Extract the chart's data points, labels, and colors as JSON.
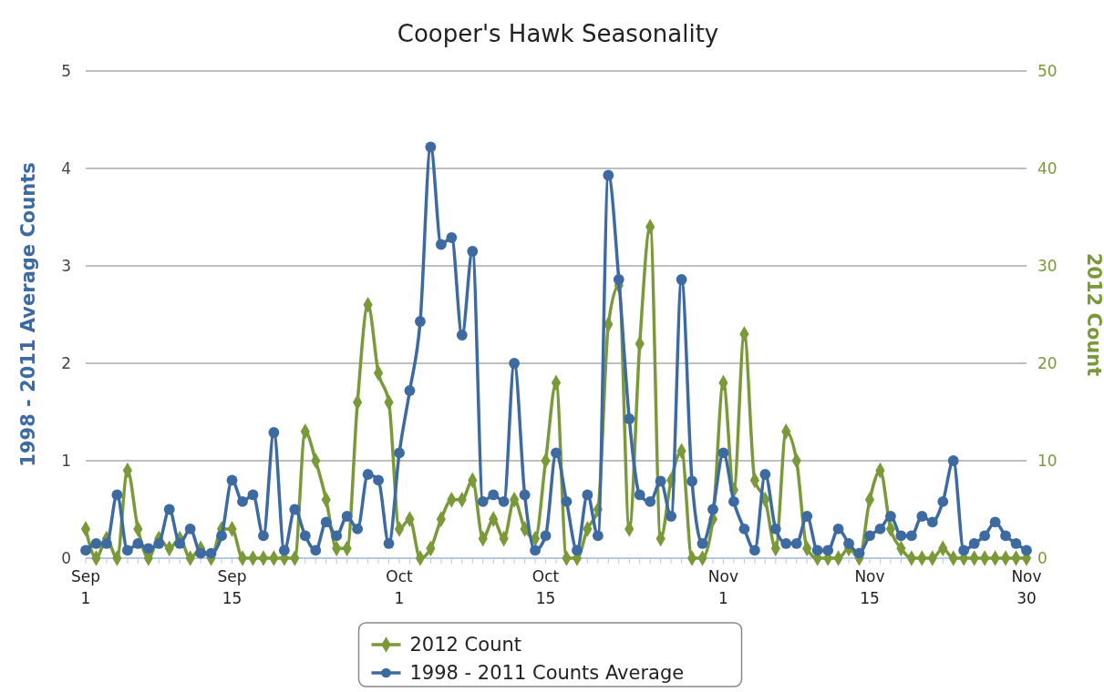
{
  "chart_data": {
    "type": "line",
    "title": "Cooper's Hawk Seasonality",
    "ylabel": "1998 - 2011 Average Counts",
    "y2label": "2012 Count",
    "x": [
      "--09-01",
      "--09-02",
      "--09-03",
      "--09-04",
      "--09-05",
      "--09-06",
      "--09-07",
      "--09-08",
      "--09-09",
      "--09-10",
      "--09-11",
      "--09-12",
      "--09-13",
      "--09-14",
      "--09-15",
      "--09-16",
      "--09-17",
      "--09-18",
      "--09-19",
      "--09-20",
      "--09-21",
      "--09-22",
      "--09-23",
      "--09-24",
      "--09-25",
      "--09-26",
      "--09-27",
      "--09-28",
      "--09-29",
      "--09-30",
      "--10-01",
      "--10-02",
      "--10-03",
      "--10-04",
      "--10-05",
      "--10-06",
      "--10-07",
      "--10-08",
      "--10-09",
      "--10-10",
      "--10-11",
      "--10-12",
      "--10-13",
      "--10-14",
      "--10-15",
      "--10-16",
      "--10-17",
      "--10-18",
      "--10-19",
      "--10-20",
      "--10-21",
      "--10-22",
      "--10-23",
      "--10-24",
      "--10-25",
      "--10-26",
      "--10-27",
      "--10-28",
      "--10-29",
      "--10-30",
      "--10-31",
      "--11-01",
      "--11-02",
      "--11-03",
      "--11-04",
      "--11-05",
      "--11-06",
      "--11-07",
      "--11-08",
      "--11-09",
      "--11-10",
      "--11-11",
      "--11-12",
      "--11-13",
      "--11-14",
      "--11-15",
      "--11-16",
      "--11-17",
      "--11-18",
      "--11-19",
      "--11-20",
      "--11-21",
      "--11-22",
      "--11-23",
      "--11-24",
      "--11-25",
      "--11-26",
      "--11-27",
      "--11-28",
      "--11-29",
      "--11-30"
    ],
    "series": [
      {
        "name": "2012 Count",
        "color": "#7a9a3a",
        "axis": "y2",
        "marker": "diamond",
        "values": [
          3,
          0,
          2,
          0,
          9,
          3,
          0,
          2,
          1,
          2,
          0,
          1,
          0,
          3,
          3,
          0,
          0,
          0,
          0,
          0,
          0,
          13,
          10,
          6,
          1,
          1,
          16,
          26,
          19,
          16,
          3,
          4,
          0,
          1,
          4,
          6,
          6,
          8,
          2,
          4,
          2,
          6,
          3,
          2,
          10,
          18,
          0,
          0,
          3,
          5,
          24,
          28,
          3,
          22,
          34,
          2,
          8,
          11,
          0,
          0,
          4,
          18,
          7,
          23,
          8,
          6,
          1,
          13,
          10,
          1,
          0,
          0,
          0,
          1,
          0,
          6,
          9,
          3,
          1,
          0,
          0,
          0,
          1,
          0,
          0,
          0,
          0,
          0,
          0,
          0,
          0
        ]
      },
      {
        "name": "1998 - 2011 Counts Average",
        "color": "#3d6aa0",
        "axis": "y",
        "marker": "circle",
        "values": [
          0.08,
          0.15,
          0.15,
          0.65,
          0.08,
          0.15,
          0.1,
          0.15,
          0.5,
          0.15,
          0.3,
          0.05,
          0.05,
          0.23,
          0.8,
          0.58,
          0.65,
          0.23,
          1.29,
          0.08,
          0.5,
          0.23,
          0.08,
          0.37,
          0.23,
          0.43,
          0.3,
          0.86,
          0.8,
          0.15,
          1.08,
          1.72,
          2.43,
          4.22,
          3.22,
          3.29,
          2.29,
          3.15,
          0.58,
          0.65,
          0.58,
          2.0,
          0.65,
          0.08,
          0.23,
          1.08,
          0.58,
          0.08,
          0.65,
          0.23,
          3.93,
          2.86,
          1.43,
          0.65,
          0.58,
          0.79,
          0.43,
          2.86,
          0.79,
          0.15,
          0.5,
          1.08,
          0.58,
          0.3,
          0.08,
          0.86,
          0.3,
          0.15,
          0.15,
          0.43,
          0.08,
          0.08,
          0.3,
          0.15,
          0.05,
          0.23,
          0.3,
          0.43,
          0.23,
          0.23,
          0.43,
          0.37,
          0.58,
          1.0,
          0.08,
          0.15,
          0.23,
          0.37,
          0.23,
          0.15,
          0.08
        ]
      }
    ],
    "xlim": [
      "--09-01",
      "--11-30"
    ],
    "xticks": [
      {
        "value": "--09-01",
        "label": "Sep 1"
      },
      {
        "value": "--09-15",
        "label": "Sep 15"
      },
      {
        "value": "--10-01",
        "label": "Oct 1"
      },
      {
        "value": "--10-15",
        "label": "Oct 15"
      },
      {
        "value": "--11-01",
        "label": "Nov 1"
      },
      {
        "value": "--11-15",
        "label": "Nov 15"
      },
      {
        "value": "--11-30",
        "label": "Nov 30"
      }
    ],
    "ylim": [
      0,
      5
    ],
    "yticks": [
      0,
      1,
      2,
      3,
      4,
      5
    ],
    "y2lim": [
      0,
      50
    ],
    "y2ticks": [
      0,
      10,
      20,
      30,
      40,
      50
    ],
    "grid": "y",
    "legend": "bottom"
  }
}
